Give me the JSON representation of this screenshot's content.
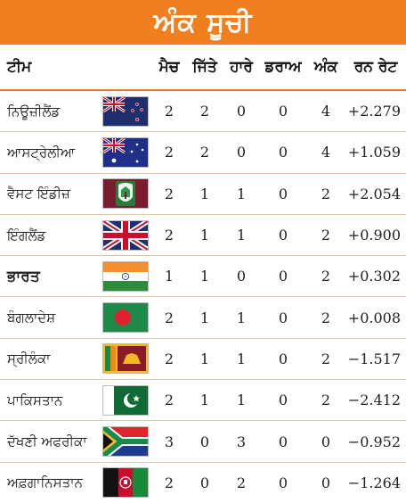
{
  "title": "ਅੰਕ ਸੂਚੀ",
  "headers": {
    "team": "ਟੀਮ",
    "played": "ਮੈਚ",
    "won": "ਜਿੱਤੇ",
    "lost": "ਹਾਰੇ",
    "draw": "ਡਰਾਅ",
    "points": "ਅੰਕ",
    "nrr": "ਰਨ ਰੇਟ"
  },
  "colors": {
    "accent": "#f07f20",
    "row_divider": "#e8c9a7"
  },
  "rows": [
    {
      "team": "ਨਿਊਜ਼ੀਲੈਂਡ",
      "flag": "new-zealand-flag",
      "played": "2",
      "won": "2",
      "lost": "0",
      "draw": "0",
      "points": "4",
      "nrr": "+2.279"
    },
    {
      "team": "ਆਸਟ੍ਰੇਲੀਆ",
      "flag": "australia-flag",
      "played": "2",
      "won": "2",
      "lost": "0",
      "draw": "0",
      "points": "4",
      "nrr": "+1.059"
    },
    {
      "team": "ਵੈਸਟ ਇੰਡੀਜ਼",
      "flag": "west-indies-flag",
      "played": "2",
      "won": "1",
      "lost": "1",
      "draw": "0",
      "points": "2",
      "nrr": "+2.054"
    },
    {
      "team": "ਇੰਗਲੈਂਡ",
      "flag": "england-flag",
      "played": "2",
      "won": "1",
      "lost": "1",
      "draw": "0",
      "points": "2",
      "nrr": "+0.900"
    },
    {
      "team": "ਭਾਰਤ",
      "flag": "india-flag",
      "played": "1",
      "won": "1",
      "lost": "0",
      "draw": "0",
      "points": "2",
      "nrr": "+0.302"
    },
    {
      "team": "ਬੰਗਲਾਦੇਸ਼",
      "flag": "bangladesh-flag",
      "played": "2",
      "won": "1",
      "lost": "1",
      "draw": "0",
      "points": "2",
      "nrr": "+0.008"
    },
    {
      "team": "ਸ੍ਰੀਲੰਕਾ",
      "flag": "sri-lanka-flag",
      "played": "2",
      "won": "1",
      "lost": "1",
      "draw": "0",
      "points": "2",
      "nrr": "−1.517"
    },
    {
      "team": "ਪਾਕਿਸਤਾਨ",
      "flag": "pakistan-flag",
      "played": "2",
      "won": "1",
      "lost": "1",
      "draw": "0",
      "points": "2",
      "nrr": "−2.412"
    },
    {
      "team": "ਦੱਖਣੀ ਅਫਰੀਕਾ",
      "flag": "south-africa-flag",
      "played": "3",
      "won": "0",
      "lost": "3",
      "draw": "0",
      "points": "0",
      "nrr": "−0.952"
    },
    {
      "team": "ਅਫ਼ਗਾਨਿਸਤਾਨ",
      "flag": "afghanistan-flag",
      "played": "2",
      "won": "0",
      "lost": "2",
      "draw": "0",
      "points": "0",
      "nrr": "−1.264"
    }
  ]
}
